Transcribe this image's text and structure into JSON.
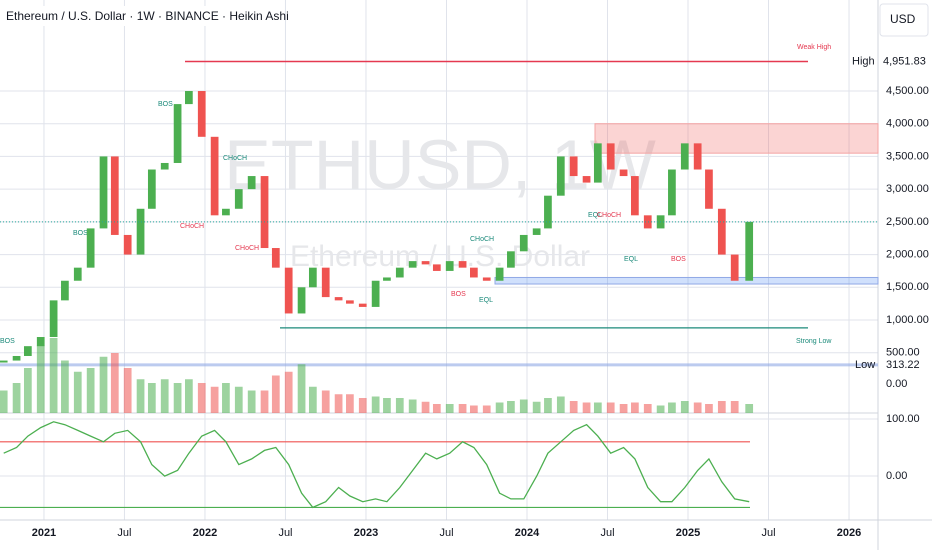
{
  "chart_data": {
    "type": "candlestick",
    "title": "Ethereum / U.S. Dollar · 1W · BINANCE · Heikin Ashi",
    "currency": "USD",
    "watermark": "ETHUSD, 1W",
    "watermark_sub": "Ethereum / U.S. Dollar",
    "x": [
      2020.75,
      2020.83,
      2020.9,
      2020.98,
      2021.06,
      2021.13,
      2021.21,
      2021.29,
      2021.37,
      2021.44,
      2021.52,
      2021.6,
      2021.67,
      2021.75,
      2021.83,
      2021.9,
      2021.98,
      2022.06,
      2022.13,
      2022.21,
      2022.29,
      2022.37,
      2022.44,
      2022.52,
      2022.6,
      2022.67,
      2022.75,
      2022.83,
      2022.9,
      2022.98,
      2023.06,
      2023.13,
      2023.21,
      2023.29,
      2023.37,
      2023.44,
      2023.52,
      2023.6,
      2023.67,
      2023.75,
      2023.83,
      2023.9,
      2023.98,
      2024.06,
      2024.13,
      2024.21,
      2024.29,
      2024.37,
      2024.44,
      2024.52,
      2024.6,
      2024.67,
      2024.75,
      2024.83,
      2024.9,
      2024.98,
      2025.06,
      2025.13,
      2025.21,
      2025.29,
      2025.38
    ],
    "open": [
      350,
      380,
      450,
      600,
      740,
      1300,
      1600,
      1800,
      2400,
      3500,
      2300,
      2000,
      2700,
      3300,
      3400,
      4300,
      4500,
      3800,
      2600,
      2700,
      3000,
      3200,
      2100,
      1800,
      1100,
      1500,
      1800,
      1350,
      1300,
      1250,
      1200,
      1600,
      1650,
      1800,
      1900,
      1850,
      1750,
      1900,
      1800,
      1650,
      1600,
      1800,
      2050,
      2300,
      2400,
      2900,
      3500,
      3200,
      3100,
      3700,
      3300,
      3200,
      2600,
      2400,
      2600,
      3300,
      3700,
      3300,
      2700,
      2000,
      1600
    ],
    "close": [
      380,
      450,
      600,
      740,
      1300,
      1600,
      1800,
      2400,
      3500,
      2300,
      2000,
      2700,
      3300,
      3400,
      4300,
      4500,
      3800,
      2600,
      2700,
      3000,
      3200,
      2100,
      1800,
      1100,
      1500,
      1800,
      1350,
      1300,
      1250,
      1200,
      1600,
      1650,
      1800,
      1900,
      1850,
      1750,
      1900,
      1800,
      1650,
      1600,
      1800,
      2050,
      2300,
      2400,
      2900,
      3500,
      3200,
      3100,
      3700,
      3300,
      3200,
      2600,
      2400,
      2600,
      3300,
      3700,
      3300,
      2700,
      2000,
      1600,
      2500
    ],
    "volume": [
      30,
      40,
      60,
      90,
      100,
      70,
      55,
      60,
      75,
      80,
      60,
      45,
      40,
      45,
      40,
      45,
      40,
      35,
      40,
      35,
      30,
      30,
      50,
      55,
      65,
      35,
      30,
      25,
      25,
      20,
      22,
      20,
      20,
      18,
      15,
      12,
      12,
      12,
      10,
      10,
      14,
      16,
      18,
      15,
      20,
      22,
      16,
      14,
      14,
      14,
      12,
      14,
      12,
      10,
      14,
      16,
      14,
      12,
      16,
      16,
      12
    ],
    "oscillator": [
      40,
      50,
      70,
      85,
      95,
      90,
      80,
      70,
      60,
      75,
      80,
      60,
      20,
      0,
      10,
      40,
      70,
      80,
      60,
      20,
      30,
      45,
      50,
      20,
      -30,
      -55,
      -45,
      -20,
      -35,
      -45,
      -40,
      -45,
      -20,
      10,
      40,
      30,
      40,
      60,
      50,
      20,
      -30,
      -40,
      -40,
      0,
      40,
      60,
      80,
      90,
      70,
      40,
      50,
      30,
      -20,
      -45,
      -45,
      -20,
      10,
      30,
      -10,
      -40,
      -45
    ],
    "up_color": "#4caf50",
    "down_color": "#ef5350",
    "xlim": [
      2020.727,
      2026.18
    ],
    "xticks": [
      2021,
      {
        "value": 2021.5,
        "label": "Jul"
      },
      2022,
      {
        "value": 2022.5,
        "label": "Jul"
      },
      2023,
      {
        "value": 2023.5,
        "label": "Jul"
      },
      2024,
      {
        "value": 2024.5,
        "label": "Jul"
      },
      2025,
      {
        "value": 2025.5,
        "label": "Jul"
      },
      2026
    ],
    "ylim": [
      -452,
      5891
    ],
    "yticks": [
      {
        "value": 500,
        "label": "500.00"
      },
      {
        "value": 1000,
        "label": "1,000.00"
      },
      {
        "value": 1500,
        "label": "1,500.00"
      },
      {
        "value": 2000,
        "label": "2,000.00"
      },
      {
        "value": 2500,
        "label": "2,500.00"
      },
      {
        "value": 3000,
        "label": "3,000.00"
      },
      {
        "value": 3500,
        "label": "3,500.00"
      },
      {
        "value": 4000,
        "label": "4,000.00"
      },
      {
        "value": 4500,
        "label": "4,500.00"
      }
    ],
    "high": {
      "name": "High",
      "value": 4951.83,
      "label": "4,951.83"
    },
    "low": {
      "name": "Low",
      "value": 313.22,
      "label": "313.22"
    },
    "zones": [
      [
        3550,
        4000
      ],
      [
        1550,
        1650
      ]
    ],
    "strong_low": 880,
    "osc_ylim": [
      110.5,
      -77
    ],
    "osc_yticks": [
      {
        "value": 100,
        "label": "100.00"
      },
      {
        "value": 0,
        "label": "0.00"
      }
    ],
    "osc_levels": [
      60,
      -55
    ],
    "volume_zero_label": "0.00",
    "annotations": [
      "Weak High",
      "Strong Low",
      "BOS",
      "BOS",
      "BOS",
      "CHoCH",
      "CHoCH",
      "CHoCH",
      "CHoCH",
      "BOS",
      "EQL",
      "EQL",
      "CHoCH",
      "EQL",
      "BOS"
    ],
    "grid": true
  }
}
